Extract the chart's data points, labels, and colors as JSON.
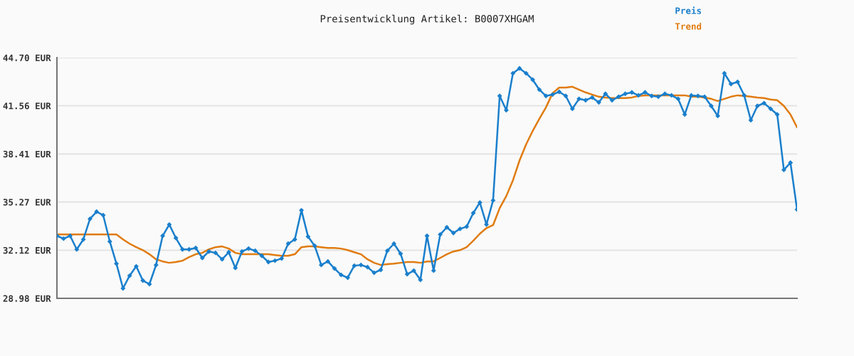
{
  "chart_data": {
    "type": "line",
    "title": "Preisentwicklung Artikel: B0007XHGAM",
    "categories": [
      null,
      null,
      null,
      null,
      null,
      null,
      null,
      null,
      null,
      null,
      null,
      null,
      null,
      null,
      null,
      null,
      null,
      null,
      null,
      null,
      null,
      null,
      null,
      null,
      null,
      null,
      null,
      null,
      null,
      null,
      null,
      null,
      null,
      null,
      null,
      null,
      null,
      null,
      null,
      null,
      null,
      null,
      null,
      null,
      null,
      null,
      null,
      null,
      null,
      null,
      null,
      null,
      null,
      null,
      null,
      null,
      null,
      null,
      null,
      null,
      null,
      null,
      null,
      null,
      null,
      null,
      null,
      null,
      null,
      null,
      null,
      null,
      null,
      null,
      null,
      null,
      null,
      null,
      null,
      null,
      null,
      null,
      null,
      null,
      null,
      null,
      null,
      null,
      null,
      null,
      null,
      null,
      null,
      null,
      null,
      null,
      null,
      null,
      null,
      null,
      null,
      null,
      null,
      null,
      null,
      null,
      null,
      null,
      null,
      null,
      null,
      null,
      null
    ],
    "series": [
      {
        "name": "Preis",
        "color": "#1a7fcc",
        "marker": "diamond",
        "values": [
          33.06,
          32.88,
          33.06,
          32.18,
          32.83,
          34.17,
          34.64,
          34.41,
          32.69,
          31.25,
          29.63,
          30.46,
          31.07,
          30.14,
          29.91,
          31.16,
          33.06,
          33.8,
          32.92,
          32.18,
          32.18,
          32.27,
          31.62,
          32.04,
          31.95,
          31.53,
          31.99,
          30.97,
          32.04,
          32.23,
          32.09,
          31.76,
          31.35,
          31.44,
          31.58,
          32.55,
          32.83,
          34.73,
          33.01,
          32.41,
          31.16,
          31.39,
          30.93,
          30.51,
          30.33,
          31.11,
          31.16,
          31.02,
          30.65,
          30.84,
          32.09,
          32.55,
          31.9,
          30.56,
          30.79,
          30.19,
          33.06,
          30.79,
          33.15,
          33.62,
          33.25,
          33.52,
          33.66,
          34.55,
          35.24,
          33.8,
          35.38,
          42.2,
          41.27,
          43.68,
          44.0,
          43.68,
          43.26,
          42.61,
          42.2,
          42.29,
          42.47,
          42.2,
          41.36,
          42.01,
          41.92,
          42.1,
          41.78,
          42.34,
          41.92,
          42.15,
          42.34,
          42.43,
          42.24,
          42.43,
          42.2,
          42.15,
          42.34,
          42.24,
          42.01,
          40.99,
          42.24,
          42.2,
          42.15,
          41.55,
          40.9,
          43.68,
          42.98,
          43.12,
          42.24,
          40.62,
          41.55,
          41.73,
          41.36,
          40.99,
          37.37,
          37.84,
          34.78
        ]
      },
      {
        "name": "Trend",
        "color": "#e07b0f",
        "marker": "none",
        "values": [
          33.15,
          33.15,
          33.15,
          33.15,
          33.15,
          33.15,
          33.15,
          33.15,
          33.15,
          33.15,
          32.83,
          32.55,
          32.32,
          32.13,
          31.86,
          31.53,
          31.39,
          31.3,
          31.35,
          31.44,
          31.67,
          31.86,
          31.95,
          32.18,
          32.32,
          32.37,
          32.23,
          31.95,
          31.86,
          31.86,
          31.86,
          31.86,
          31.86,
          31.81,
          31.76,
          31.76,
          31.86,
          32.32,
          32.37,
          32.37,
          32.32,
          32.27,
          32.27,
          32.23,
          32.13,
          31.99,
          31.86,
          31.53,
          31.3,
          31.16,
          31.21,
          31.25,
          31.3,
          31.35,
          31.35,
          31.3,
          31.39,
          31.39,
          31.62,
          31.86,
          32.04,
          32.13,
          32.32,
          32.74,
          33.2,
          33.57,
          33.76,
          34.87,
          35.66,
          36.68,
          37.98,
          39.04,
          39.92,
          40.71,
          41.45,
          42.38,
          42.75,
          42.75,
          42.8,
          42.61,
          42.43,
          42.29,
          42.15,
          42.1,
          42.06,
          42.06,
          42.06,
          42.1,
          42.2,
          42.24,
          42.24,
          42.24,
          42.24,
          42.24,
          42.24,
          42.24,
          42.15,
          42.15,
          42.1,
          42.01,
          41.87,
          42.01,
          42.15,
          42.24,
          42.2,
          42.15,
          42.1,
          42.06,
          41.97,
          41.92,
          41.55,
          40.99,
          40.14
        ]
      }
    ],
    "ylim": [
      28.98,
      44.7
    ],
    "yticks": [
      {
        "value": 28.98,
        "label": "28.98 EUR"
      },
      {
        "value": 32.12,
        "label": "32.12 EUR"
      },
      {
        "value": 35.27,
        "label": "35.27 EUR"
      },
      {
        "value": 38.41,
        "label": "38.41 EUR"
      },
      {
        "value": 41.56,
        "label": "41.56 EUR"
      },
      {
        "value": 44.7,
        "label": "44.70 EUR"
      }
    ],
    "grid": "y",
    "legend": "top right",
    "tick_labels": "y",
    "line_style": "solid"
  }
}
